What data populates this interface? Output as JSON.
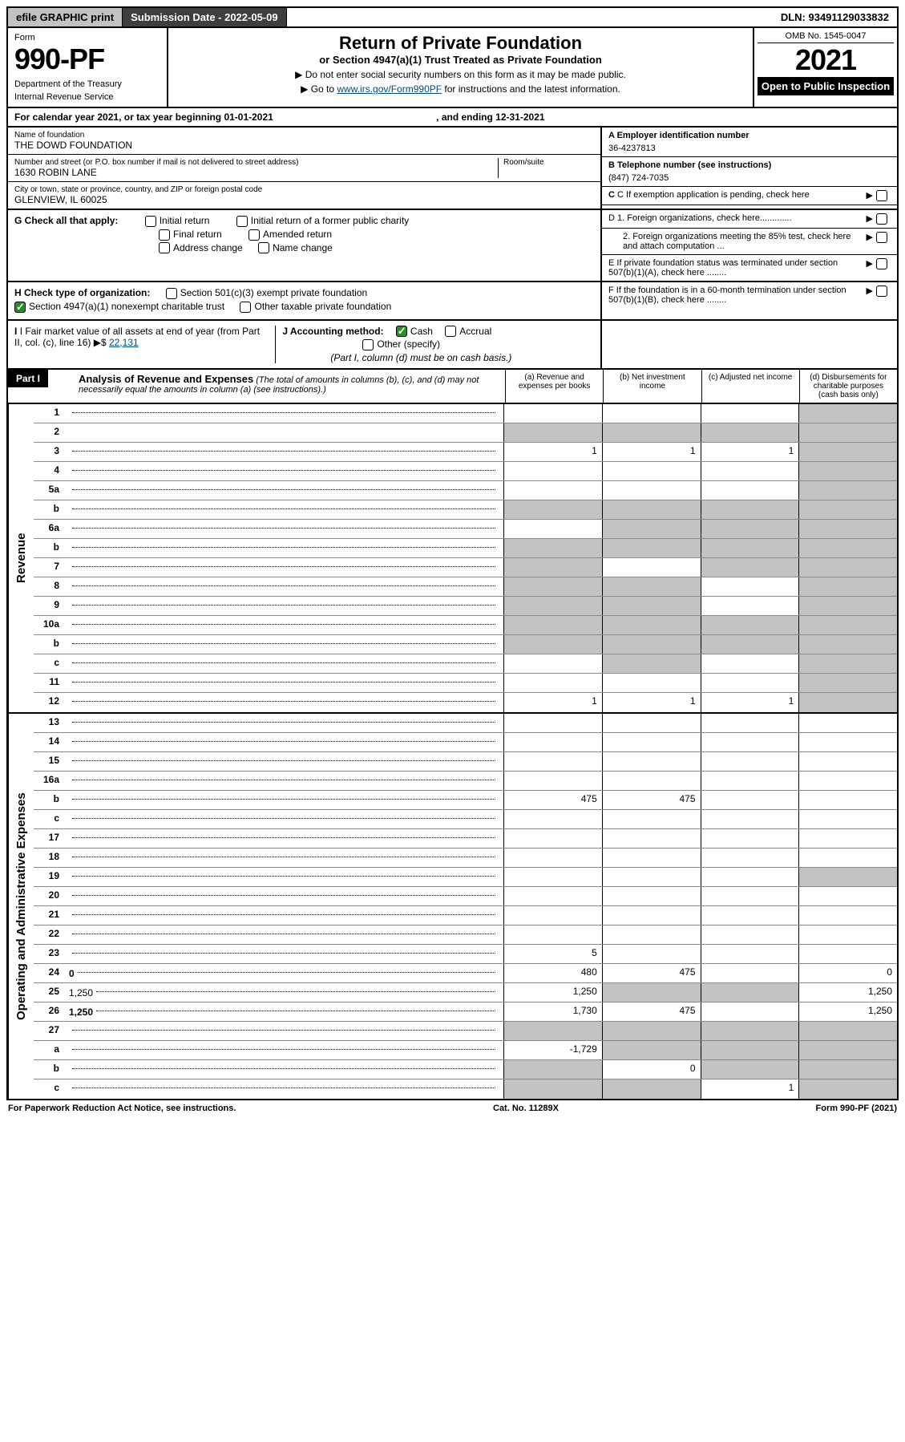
{
  "top": {
    "efile": "efile GRAPHIC print",
    "subdate_label": "Submission Date - 2022-05-09",
    "dln": "DLN: 93491129033832"
  },
  "header": {
    "form_label": "Form",
    "form_num": "990-PF",
    "dept": "Department of the Treasury",
    "irs": "Internal Revenue Service",
    "title": "Return of Private Foundation",
    "subtitle": "or Section 4947(a)(1) Trust Treated as Private Foundation",
    "note1": "▶ Do not enter social security numbers on this form as it may be made public.",
    "note2_pre": "▶ Go to ",
    "note2_link": "www.irs.gov/Form990PF",
    "note2_post": " for instructions and the latest information.",
    "omb": "OMB No. 1545-0047",
    "year": "2021",
    "open": "Open to Public Inspection"
  },
  "cal": {
    "text": "For calendar year 2021, or tax year beginning 01-01-2021",
    "ending": ", and ending 12-31-2021"
  },
  "foundation": {
    "name_label": "Name of foundation",
    "name": "THE DOWD FOUNDATION",
    "addr_label": "Number and street (or P.O. box number if mail is not delivered to street address)",
    "addr": "1630 ROBIN LANE",
    "room_label": "Room/suite",
    "city_label": "City or town, state or province, country, and ZIP or foreign postal code",
    "city": "GLENVIEW, IL  60025"
  },
  "right_info": {
    "a_label": "A Employer identification number",
    "a_val": "36-4237813",
    "b_label": "B Telephone number (see instructions)",
    "b_val": "(847) 724-7035",
    "c_label": "C If exemption application is pending, check here",
    "d1": "D 1. Foreign organizations, check here.............",
    "d2": "2. Foreign organizations meeting the 85% test, check here and attach computation ...",
    "e": "E  If private foundation status was terminated under section 507(b)(1)(A), check here ........",
    "f": "F  If the foundation is in a 60-month termination under section 507(b)(1)(B), check here ........"
  },
  "g": {
    "label": "G Check all that apply:",
    "initial": "Initial return",
    "initial_former": "Initial return of a former public charity",
    "final": "Final return",
    "amended": "Amended return",
    "addr_change": "Address change",
    "name_change": "Name change"
  },
  "h": {
    "label": "H Check type of organization:",
    "s501": "Section 501(c)(3) exempt private foundation",
    "s4947": "Section 4947(a)(1) nonexempt charitable trust",
    "other": "Other taxable private foundation"
  },
  "i": {
    "label": "I Fair market value of all assets at end of year (from Part II, col. (c), line 16)",
    "val": "22,131",
    "j_label": "J Accounting method:",
    "cash": "Cash",
    "accrual": "Accrual",
    "other": "Other (specify)",
    "note": "(Part I, column (d) must be on cash basis.)"
  },
  "part1": {
    "label": "Part I",
    "title": "Analysis of Revenue and Expenses",
    "note": "(The total of amounts in columns (b), (c), and (d) may not necessarily equal the amounts in column (a) (see instructions).)",
    "col_a": "(a) Revenue and expenses per books",
    "col_b": "(b) Net investment income",
    "col_c": "(c) Adjusted net income",
    "col_d": "(d) Disbursements for charitable purposes (cash basis only)"
  },
  "vert": {
    "revenue": "Revenue",
    "expenses": "Operating and Administrative Expenses"
  },
  "rows": [
    {
      "n": "1",
      "d": "",
      "a": "",
      "b": "",
      "c": "",
      "grey": [
        "d"
      ]
    },
    {
      "n": "2",
      "d": "",
      "a": "",
      "b": "",
      "c": "",
      "grey": [
        "a",
        "b",
        "c",
        "d"
      ],
      "nodots": true
    },
    {
      "n": "3",
      "d": "",
      "a": "1",
      "b": "1",
      "c": "1",
      "grey": [
        "d"
      ]
    },
    {
      "n": "4",
      "d": "",
      "a": "",
      "b": "",
      "c": "",
      "grey": [
        "d"
      ]
    },
    {
      "n": "5a",
      "d": "",
      "a": "",
      "b": "",
      "c": "",
      "grey": [
        "d"
      ]
    },
    {
      "n": "b",
      "d": "",
      "a": "",
      "b": "",
      "c": "",
      "grey": [
        "a",
        "b",
        "c",
        "d"
      ]
    },
    {
      "n": "6a",
      "d": "",
      "a": "",
      "b": "",
      "c": "",
      "grey": [
        "b",
        "c",
        "d"
      ]
    },
    {
      "n": "b",
      "d": "",
      "a": "",
      "b": "",
      "c": "",
      "grey": [
        "a",
        "b",
        "c",
        "d"
      ]
    },
    {
      "n": "7",
      "d": "",
      "a": "",
      "b": "",
      "c": "",
      "grey": [
        "a",
        "c",
        "d"
      ]
    },
    {
      "n": "8",
      "d": "",
      "a": "",
      "b": "",
      "c": "",
      "grey": [
        "a",
        "b",
        "d"
      ]
    },
    {
      "n": "9",
      "d": "",
      "a": "",
      "b": "",
      "c": "",
      "grey": [
        "a",
        "b",
        "d"
      ]
    },
    {
      "n": "10a",
      "d": "",
      "a": "",
      "b": "",
      "c": "",
      "grey": [
        "a",
        "b",
        "c",
        "d"
      ]
    },
    {
      "n": "b",
      "d": "",
      "a": "",
      "b": "",
      "c": "",
      "grey": [
        "a",
        "b",
        "c",
        "d"
      ]
    },
    {
      "n": "c",
      "d": "",
      "a": "",
      "b": "",
      "c": "",
      "grey": [
        "b",
        "d"
      ]
    },
    {
      "n": "11",
      "d": "",
      "a": "",
      "b": "",
      "c": "",
      "grey": [
        "d"
      ]
    },
    {
      "n": "12",
      "d": "",
      "a": "1",
      "b": "1",
      "c": "1",
      "grey": [
        "d"
      ],
      "bold": true
    }
  ],
  "exp_rows": [
    {
      "n": "13",
      "d": "",
      "a": "",
      "b": "",
      "c": ""
    },
    {
      "n": "14",
      "d": "",
      "a": "",
      "b": "",
      "c": ""
    },
    {
      "n": "15",
      "d": "",
      "a": "",
      "b": "",
      "c": ""
    },
    {
      "n": "16a",
      "d": "",
      "a": "",
      "b": "",
      "c": ""
    },
    {
      "n": "b",
      "d": "",
      "a": "475",
      "b": "475",
      "c": ""
    },
    {
      "n": "c",
      "d": "",
      "a": "",
      "b": "",
      "c": ""
    },
    {
      "n": "17",
      "d": "",
      "a": "",
      "b": "",
      "c": ""
    },
    {
      "n": "18",
      "d": "",
      "a": "",
      "b": "",
      "c": ""
    },
    {
      "n": "19",
      "d": "",
      "a": "",
      "b": "",
      "c": "",
      "grey": [
        "d"
      ]
    },
    {
      "n": "20",
      "d": "",
      "a": "",
      "b": "",
      "c": ""
    },
    {
      "n": "21",
      "d": "",
      "a": "",
      "b": "",
      "c": ""
    },
    {
      "n": "22",
      "d": "",
      "a": "",
      "b": "",
      "c": ""
    },
    {
      "n": "23",
      "d": "",
      "a": "5",
      "b": "",
      "c": ""
    },
    {
      "n": "24",
      "d": "0",
      "a": "480",
      "b": "475",
      "c": "",
      "bold": true
    },
    {
      "n": "25",
      "d": "1,250",
      "a": "1,250",
      "b": "",
      "c": "",
      "grey": [
        "b",
        "c"
      ]
    },
    {
      "n": "26",
      "d": "1,250",
      "a": "1,730",
      "b": "475",
      "c": "",
      "bold": true
    },
    {
      "n": "27",
      "d": "",
      "a": "",
      "b": "",
      "c": "",
      "grey": [
        "a",
        "b",
        "c",
        "d"
      ]
    },
    {
      "n": "a",
      "d": "",
      "a": "-1,729",
      "b": "",
      "c": "",
      "grey": [
        "b",
        "c",
        "d"
      ],
      "bold": true
    },
    {
      "n": "b",
      "d": "",
      "a": "",
      "b": "0",
      "c": "",
      "grey": [
        "a",
        "c",
        "d"
      ],
      "bold": true
    },
    {
      "n": "c",
      "d": "",
      "a": "",
      "b": "",
      "c": "1",
      "grey": [
        "a",
        "b",
        "d"
      ],
      "bold": true
    }
  ],
  "footer": {
    "left": "For Paperwork Reduction Act Notice, see instructions.",
    "center": "Cat. No. 11289X",
    "right": "Form 990-PF (2021)"
  },
  "colors": {
    "grey_bg": "#c2c2c2",
    "dark_bg": "#3e3e3e",
    "link": "#004b7a",
    "check": "#2d8a2d"
  }
}
